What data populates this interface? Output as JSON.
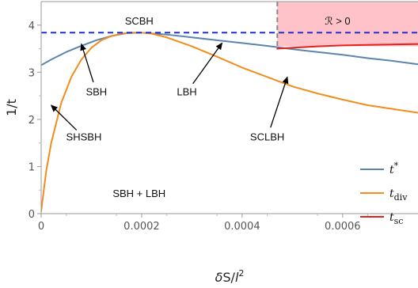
{
  "chart_data": {
    "type": "line",
    "title": "",
    "xlabel": "δS/l²",
    "ylabel": "1/t",
    "xlim": [
      0,
      0.00075
    ],
    "ylim": [
      0,
      4.5
    ],
    "x_ticks": [
      {
        "value": 0,
        "label": "0"
      },
      {
        "value": 0.0002,
        "label": "0.0002"
      },
      {
        "value": 0.0004,
        "label": "0.0004"
      },
      {
        "value": 0.0006,
        "label": "0.0006"
      }
    ],
    "y_ticks": [
      {
        "value": 0,
        "label": "0"
      },
      {
        "value": 1,
        "label": "1"
      },
      {
        "value": 2,
        "label": "2"
      },
      {
        "value": 3,
        "label": "3"
      },
      {
        "value": 4,
        "label": "4"
      }
    ],
    "grid": false,
    "legend_position": "bottom-right",
    "series": [
      {
        "name": "t*",
        "color": "#5b84b1",
        "x": [
          0,
          2e-05,
          5e-05,
          8e-05,
          0.00011,
          0.00014,
          0.00017,
          0.0002,
          0.00025,
          0.0003,
          0.00035,
          0.0004,
          0.00045,
          0.0005,
          0.00055,
          0.0006,
          0.00065,
          0.0007,
          0.00075
        ],
        "y": [
          3.15,
          3.27,
          3.43,
          3.56,
          3.68,
          3.77,
          3.83,
          3.84,
          3.8,
          3.74,
          3.68,
          3.62,
          3.56,
          3.49,
          3.43,
          3.37,
          3.3,
          3.24,
          3.17
        ]
      },
      {
        "name": "t_div",
        "color": "#f28c1e",
        "x": [
          0,
          1e-05,
          2e-05,
          4e-05,
          6e-05,
          8e-05,
          0.0001,
          0.00012,
          0.00014,
          0.00016,
          0.00018,
          0.0002,
          0.00022,
          0.00025,
          0.0003,
          0.00035,
          0.0004,
          0.00045,
          0.0005,
          0.00055,
          0.0006,
          0.00065,
          0.0007,
          0.00075
        ],
        "y": [
          0.05,
          0.9,
          1.5,
          2.35,
          2.9,
          3.27,
          3.52,
          3.68,
          3.77,
          3.82,
          3.84,
          3.84,
          3.82,
          3.74,
          3.55,
          3.33,
          3.1,
          2.9,
          2.7,
          2.55,
          2.42,
          2.3,
          2.22,
          2.14
        ]
      },
      {
        "name": "t_sc",
        "color": "#e3231b",
        "x": [
          0.00047,
          0.0005,
          0.00055,
          0.0006,
          0.00065,
          0.0007,
          0.00075
        ],
        "y": [
          3.5,
          3.52,
          3.55,
          3.57,
          3.58,
          3.59,
          3.6
        ]
      }
    ],
    "reference_lines": {
      "horizontal_dashed_y": 3.84,
      "horizontal_dashed_color": "#1f2fd0",
      "vertical_dashed_x": 0.00047,
      "vertical_dashed_color": "#888888"
    },
    "shaded_region": {
      "x_from": 0.00047,
      "x_to": 0.00075,
      "y_from": 3.55,
      "y_to": 4.5,
      "color": "#ffc2c8"
    },
    "annotations": [
      {
        "id": "scbh",
        "text": "SCBH",
        "x": 0.000195,
        "y": 4.08
      },
      {
        "id": "r-positive",
        "text": "ℛ > 0",
        "x": 0.00059,
        "y": 4.08
      },
      {
        "id": "sbh",
        "text": "SBH",
        "x": 0.00011,
        "y": 2.58,
        "arrow_to_x": 8e-05,
        "arrow_to_y": 3.6
      },
      {
        "id": "lbh",
        "text": "LBH",
        "x": 0.00029,
        "y": 2.58,
        "arrow_to_x": 0.00036,
        "arrow_to_y": 3.62
      },
      {
        "id": "shsbh",
        "text": "SHSBH",
        "x": 8.5e-05,
        "y": 1.62,
        "arrow_to_x": 2e-05,
        "arrow_to_y": 2.3
      },
      {
        "id": "sclbh",
        "text": "SCLBH",
        "x": 0.00045,
        "y": 1.62,
        "arrow_to_x": 0.00049,
        "arrow_to_y": 2.9
      },
      {
        "id": "sbh-lbh",
        "text": "SBH + LBH",
        "x": 0.000195,
        "y": 0.42
      }
    ]
  }
}
